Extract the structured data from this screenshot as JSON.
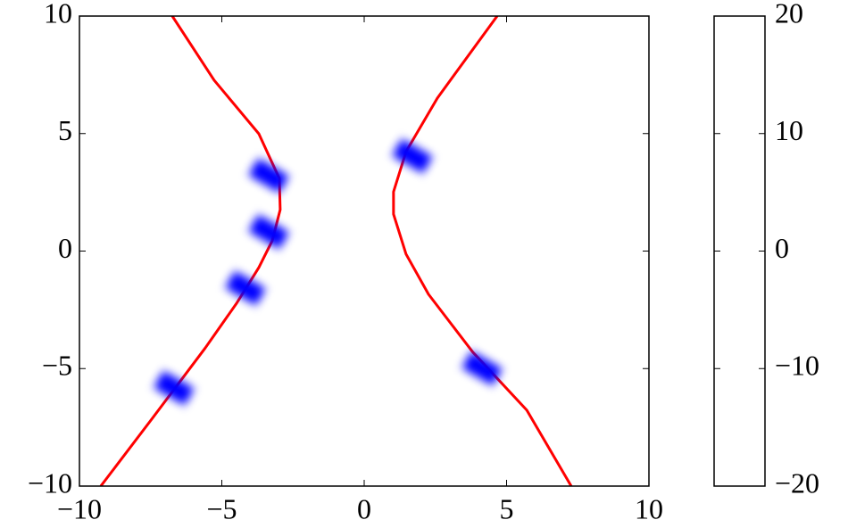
{
  "chart_data": {
    "type": "line",
    "xlim": [
      -10,
      10
    ],
    "ylim": [
      -10,
      10
    ],
    "xticks": [
      {
        "value": -10,
        "label": "−10"
      },
      {
        "value": -5,
        "label": "−5"
      },
      0,
      5,
      10
    ],
    "yticks": [
      {
        "value": -10,
        "label": "−10"
      },
      {
        "value": -5,
        "label": "−5"
      },
      0,
      5,
      10
    ],
    "series": [
      {
        "type": "line",
        "color": "#ff0000",
        "x": [
          -6.74,
          -5.27,
          -3.7,
          -2.98,
          -2.95,
          -3.23,
          -3.7,
          -4.48,
          -5.58,
          -7.46,
          -9.25
        ],
        "values": [
          10,
          7.27,
          4.99,
          3.09,
          1.76,
          0.44,
          -0.7,
          -2.22,
          -4.12,
          -7.15,
          -10
        ]
      },
      {
        "type": "line",
        "color": "#ff0000",
        "x": [
          4.67,
          2.57,
          1.47,
          1.03,
          1.03,
          1.47,
          2.26,
          3.82,
          5.71,
          7.27
        ],
        "values": [
          10,
          6.51,
          4.23,
          2.52,
          1.57,
          -0.13,
          -1.84,
          -4.31,
          -6.77,
          -10
        ]
      },
      {
        "type": "scatter",
        "color": "#0000ff",
        "x": [
          -3.35,
          -3.35,
          -4.17,
          -6.68,
          1.69,
          4.14
        ],
        "values": [
          3.21,
          0.82,
          -1.58,
          -5.83,
          4.04,
          -4.99
        ]
      }
    ],
    "colorbar": {
      "lim": [
        -20,
        20
      ],
      "ticks": [
        {
          "value": -20,
          "label": "−20"
        },
        {
          "value": -10,
          "label": "−10"
        },
        0,
        10,
        20
      ]
    }
  }
}
